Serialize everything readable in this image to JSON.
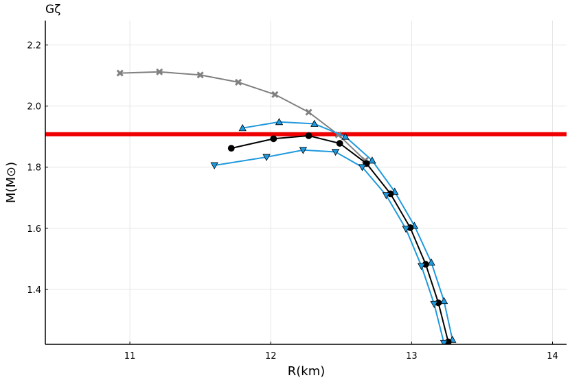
{
  "chart_data": {
    "type": "line",
    "title": "Gζ",
    "xlabel": "R(km)",
    "ylabel": "M(M⊙)",
    "xlim": [
      10.4,
      14.1
    ],
    "ylim": [
      1.22,
      2.28
    ],
    "x_ticks": [
      11,
      12,
      13,
      14
    ],
    "y_ticks": [
      1.4,
      1.6,
      1.8,
      2.0,
      2.2
    ],
    "x_tick_labels": [
      "11",
      "12",
      "13",
      "14"
    ],
    "y_tick_labels": [
      "1.4",
      "1.6",
      "1.8",
      "2.0",
      "2.2"
    ],
    "grid": true,
    "legend": "none",
    "reference_line": {
      "y": 1.908,
      "color": "#ee0000"
    },
    "series": [
      {
        "marker": "cross",
        "color": "#808080",
        "points": [
          [
            10.93,
            2.108
          ],
          [
            11.21,
            2.112
          ],
          [
            11.5,
            2.102
          ],
          [
            11.77,
            2.078
          ],
          [
            12.03,
            2.038
          ],
          [
            12.27,
            1.98
          ],
          [
            12.48,
            1.906
          ],
          [
            12.67,
            1.822
          ]
        ]
      },
      {
        "marker": "triangle-up",
        "color": "#1f99dd",
        "points": [
          [
            11.8,
            1.928
          ],
          [
            12.06,
            1.948
          ],
          [
            12.31,
            1.942
          ],
          [
            12.53,
            1.9
          ],
          [
            12.72,
            1.822
          ],
          [
            12.88,
            1.72
          ],
          [
            13.02,
            1.608
          ],
          [
            13.14,
            1.488
          ],
          [
            13.23,
            1.362
          ],
          [
            13.29,
            1.235
          ]
        ]
      },
      {
        "marker": "circle",
        "color": "#000000",
        "points": [
          [
            11.72,
            1.862
          ],
          [
            12.02,
            1.893
          ],
          [
            12.27,
            1.903
          ],
          [
            12.49,
            1.878
          ],
          [
            12.68,
            1.812
          ],
          [
            12.85,
            1.713
          ],
          [
            12.99,
            1.602
          ],
          [
            13.1,
            1.482
          ],
          [
            13.19,
            1.356
          ],
          [
            13.26,
            1.228
          ]
        ]
      },
      {
        "marker": "triangle-down",
        "color": "#1f99dd",
        "points": [
          [
            11.6,
            1.806
          ],
          [
            11.97,
            1.833
          ],
          [
            12.23,
            1.856
          ],
          [
            12.46,
            1.85
          ],
          [
            12.65,
            1.8
          ],
          [
            12.82,
            1.708
          ],
          [
            12.96,
            1.598
          ],
          [
            13.07,
            1.476
          ],
          [
            13.16,
            1.352
          ],
          [
            13.23,
            1.224
          ]
        ]
      }
    ]
  }
}
